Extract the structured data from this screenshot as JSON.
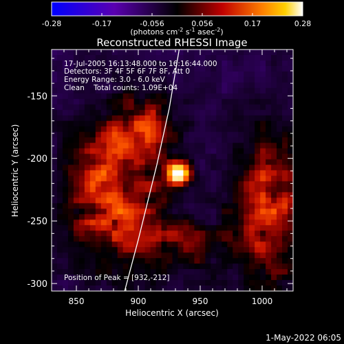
{
  "chart_data": {
    "type": "heatmap",
    "title": "Reconstructed RHESSI Image",
    "xlabel": "Heliocentric X (arcsec)",
    "ylabel": "Heliocentric Y (arcsec)",
    "xlim": [
      830,
      1025
    ],
    "ylim": [
      -306,
      -113
    ],
    "x_ticks": [
      850,
      900,
      950,
      1000
    ],
    "y_ticks": [
      -150,
      -200,
      -250,
      -300
    ],
    "annotations": [
      "17-Jul-2005 16:13:48.000 to 16:16:44.000",
      "Detectors: 3F 4F 5F 6F 7F 8F, Att 0",
      "Energy Range: 3.0 - 6.0 keV",
      "Clean    Total counts: 1.09E+04"
    ],
    "peak_label": "Position of Peak = [932,-212]",
    "peak": [
      932,
      -212
    ],
    "colorbar": {
      "min": -0.28,
      "max": 0.28,
      "ticks": [
        "-0.28",
        "-0.17",
        "-0.056",
        "0.056",
        "0.17",
        "0.28"
      ],
      "unit_label_parts": [
        "(photons cm",
        "-2",
        " s",
        "-1",
        " asec",
        "-2",
        ")"
      ]
    },
    "limb_points": [
      [
        889,
        -306
      ],
      [
        900,
        -265
      ],
      [
        915,
        -205
      ],
      [
        925,
        -160
      ],
      [
        933,
        -113
      ]
    ],
    "footer": "1-May-2022 06:05"
  }
}
